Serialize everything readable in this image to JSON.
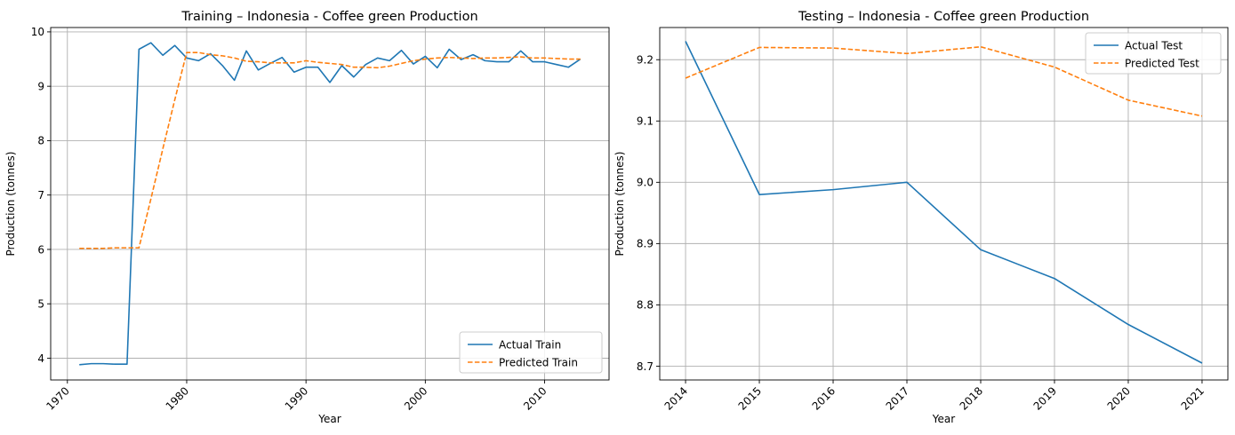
{
  "chart_data": [
    {
      "type": "line",
      "title": "Training – Indonesia - Coffee green Production",
      "xlabel": "Year",
      "ylabel": "Production (tonnes)",
      "xlim": [
        1968.6,
        2015.4
      ],
      "ylim": [
        3.6,
        10.08
      ],
      "xticks": [
        1970,
        1980,
        1990,
        2000,
        2010
      ],
      "yticks": [
        4,
        5,
        6,
        7,
        8,
        9,
        10
      ],
      "xtick_rotation": 45,
      "grid": true,
      "legend_position": "bottom-right",
      "x": [
        1971,
        1972,
        1973,
        1974,
        1975,
        1976,
        1977,
        1978,
        1979,
        1980,
        1981,
        1982,
        1983,
        1984,
        1985,
        1986,
        1987,
        1988,
        1989,
        1990,
        1991,
        1992,
        1993,
        1994,
        1995,
        1996,
        1997,
        1998,
        1999,
        2000,
        2001,
        2002,
        2003,
        2004,
        2005,
        2006,
        2007,
        2008,
        2009,
        2010,
        2011,
        2012,
        2013
      ],
      "series": [
        {
          "name": "Actual Train",
          "color": "#1f77b4",
          "dash": "solid",
          "values": [
            3.88,
            3.9,
            3.9,
            3.89,
            3.89,
            9.68,
            9.8,
            9.57,
            9.75,
            9.52,
            9.47,
            9.6,
            9.38,
            9.11,
            9.65,
            9.3,
            9.42,
            9.53,
            9.26,
            9.35,
            9.35,
            9.07,
            9.38,
            9.17,
            9.4,
            9.52,
            9.47,
            9.66,
            9.41,
            9.55,
            9.34,
            9.68,
            9.49,
            9.58,
            9.47,
            9.45,
            9.45,
            9.65,
            9.45,
            9.45,
            9.4,
            9.35,
            9.5
          ]
        },
        {
          "name": "Predicted Train",
          "color": "#ff7f0e",
          "dash": "dashed",
          "values": [
            6.02,
            6.02,
            6.02,
            6.03,
            6.03,
            6.03,
            6.93,
            7.85,
            8.75,
            9.62,
            9.62,
            9.58,
            9.56,
            9.52,
            9.46,
            9.45,
            9.43,
            9.43,
            9.43,
            9.47,
            9.44,
            9.42,
            9.4,
            9.35,
            9.35,
            9.34,
            9.37,
            9.42,
            9.47,
            9.5,
            9.52,
            9.53,
            9.52,
            9.51,
            9.52,
            9.52,
            9.53,
            9.54,
            9.52,
            9.52,
            9.51,
            9.5,
            9.5
          ]
        }
      ]
    },
    {
      "type": "line",
      "title": "Testing – Indonesia - Coffee green Production",
      "xlabel": "Year",
      "ylabel": "Production (tonnes)",
      "xlim": [
        2013.65,
        2021.35
      ],
      "ylim": [
        8.6775,
        9.2525
      ],
      "xticks": [
        2014,
        2015,
        2016,
        2017,
        2018,
        2019,
        2020,
        2021
      ],
      "yticks": [
        8.7,
        8.8,
        8.9,
        9.0,
        9.1,
        9.2
      ],
      "ytick_labels": [
        "8.7",
        "8.8",
        "8.9",
        "9.0",
        "9.1",
        "9.2"
      ],
      "xtick_rotation": 45,
      "grid": true,
      "legend_position": "top-right",
      "x": [
        2014,
        2015,
        2016,
        2017,
        2018,
        2019,
        2020,
        2021
      ],
      "series": [
        {
          "name": "Actual Test",
          "color": "#1f77b4",
          "dash": "solid",
          "values": [
            9.23,
            8.98,
            8.988,
            9.0,
            8.89,
            8.843,
            8.768,
            8.705
          ]
        },
        {
          "name": "Predicted Test",
          "color": "#ff7f0e",
          "dash": "dashed",
          "values": [
            9.17,
            9.22,
            9.219,
            9.21,
            9.221,
            9.188,
            9.134,
            9.108
          ]
        }
      ]
    }
  ]
}
